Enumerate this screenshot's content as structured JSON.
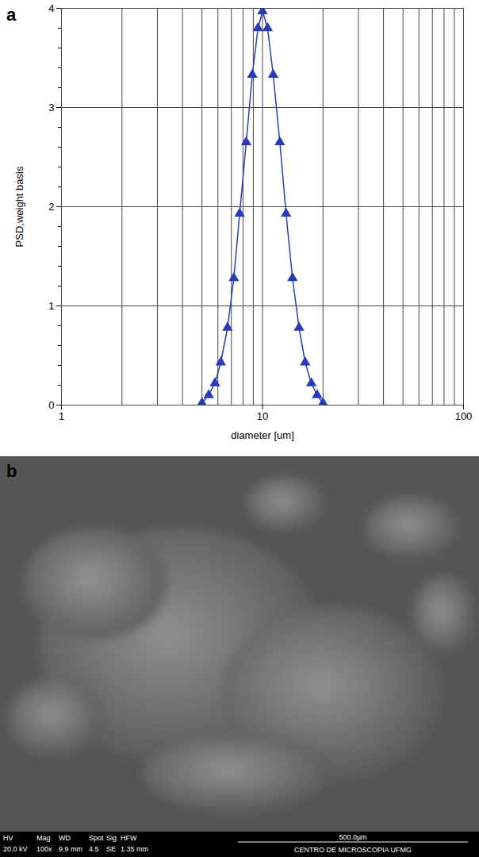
{
  "chart_data": {
    "type": "line",
    "label": "a",
    "x_label": "diameter [um]",
    "y_label": "PSD,weight basis",
    "x": [
      5.0,
      5.4,
      5.8,
      6.2,
      6.7,
      7.2,
      7.7,
      8.3,
      8.9,
      9.5,
      10.0,
      10.6,
      11.3,
      12.2,
      13.1,
      14.1,
      15.2,
      16.3,
      17.5,
      18.7,
      20.0
    ],
    "values": [
      0.02,
      0.1,
      0.22,
      0.43,
      0.78,
      1.28,
      1.93,
      2.65,
      3.33,
      3.8,
      3.97,
      3.8,
      3.33,
      2.65,
      1.93,
      1.28,
      0.78,
      0.43,
      0.22,
      0.1,
      0.02
    ],
    "color": "#2a3bb8",
    "marker": "triangle",
    "log": "x",
    "grid": true,
    "xlim": [
      1,
      100
    ],
    "xticks": [
      1,
      10,
      100
    ],
    "ylim": [
      0,
      4
    ],
    "yticks": [
      0,
      1,
      2,
      3,
      4
    ]
  },
  "image_panel": {
    "label": "b",
    "info_bar": {
      "headers": [
        "HV",
        "Mag",
        "WD",
        "Spot",
        "Sig",
        "HFW"
      ],
      "values": [
        "20.0 kV",
        "100x",
        "9.9 mm",
        "4.5",
        "SE",
        "1.35 mm"
      ]
    },
    "scale_bar": "500.0µm",
    "facility": "CENTRO DE MICROSCOPIA UFMG"
  }
}
